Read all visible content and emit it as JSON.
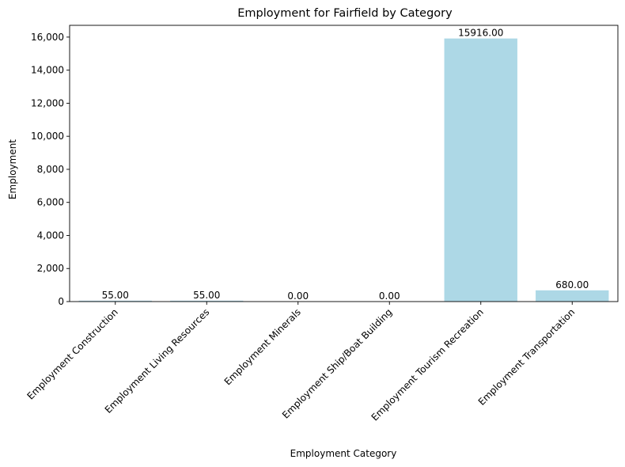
{
  "chart_data": {
    "type": "bar",
    "title": "Employment for Fairfield by Category",
    "xlabel": "Employment Category",
    "ylabel": "Employment",
    "categories": [
      "Employment Construction",
      "Employment Living Resources",
      "Employment Minerals",
      "Employment Ship/Boat Building",
      "Employment Tourism Recreation",
      "Employment Transportation"
    ],
    "values": [
      55,
      55,
      0,
      0,
      15916,
      680
    ],
    "data_labels": [
      "55.00",
      "55.00",
      "0.00",
      "0.00",
      "15916.00",
      "680.00"
    ],
    "ylim": [
      0,
      16712
    ],
    "yticks": [
      0,
      2000,
      4000,
      6000,
      8000,
      10000,
      12000,
      14000,
      16000
    ],
    "ytick_labels": [
      "0",
      "2,000",
      "4,000",
      "6,000",
      "8,000",
      "10,000",
      "12,000",
      "14,000",
      "16,000"
    ],
    "bar_color": "#add8e6",
    "grid": false,
    "legend": "none"
  }
}
